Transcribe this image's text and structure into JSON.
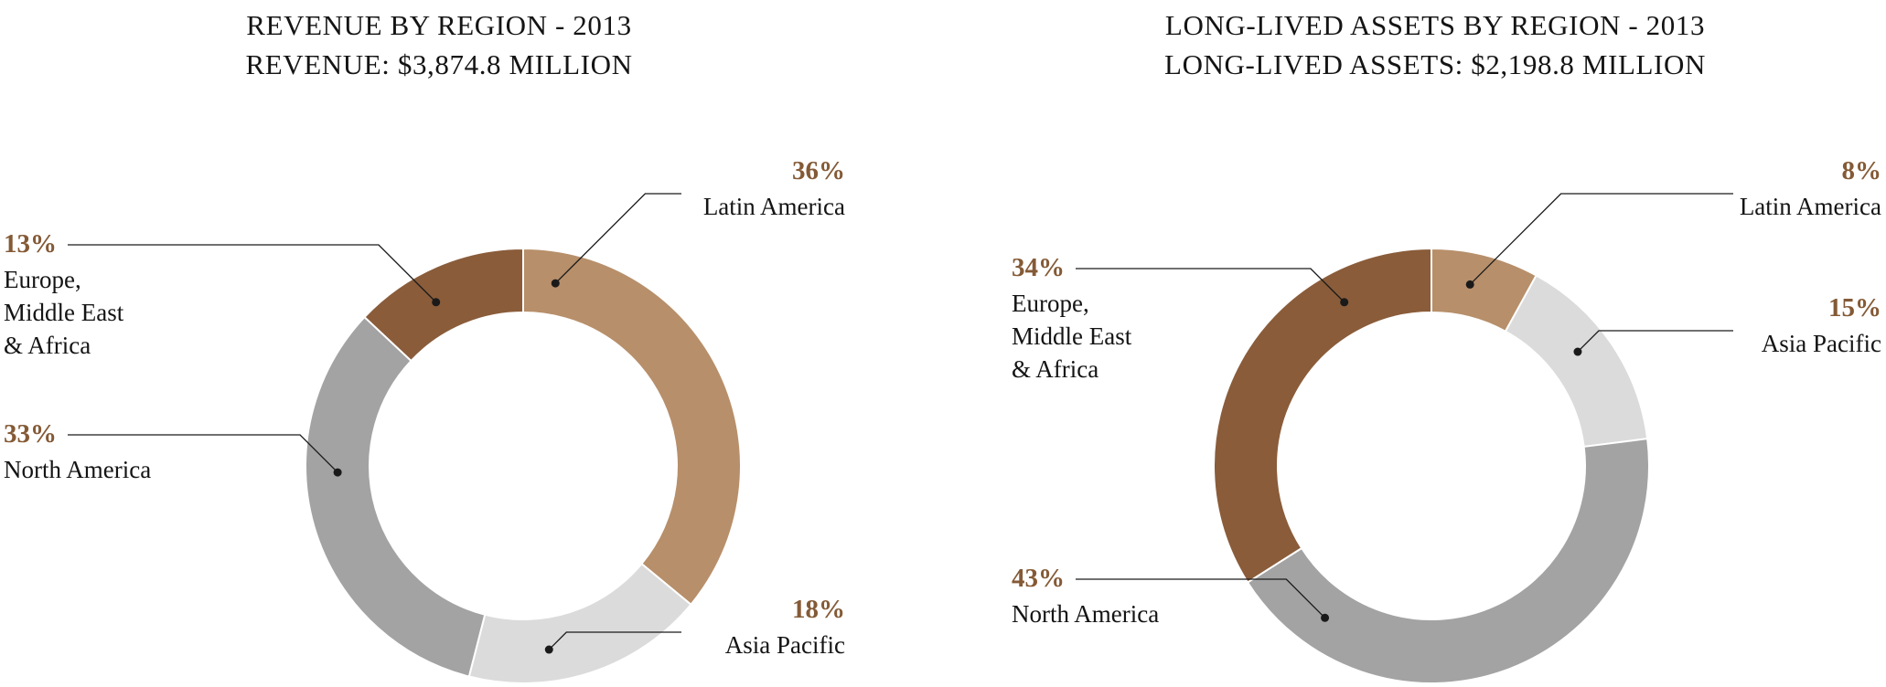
{
  "style": {
    "background": "#ffffff",
    "text_color": "#141414",
    "pct_label_color": "#845a36",
    "leader_color": "#1a1a1a",
    "slice_gap_color": "#ffffff"
  },
  "chart_data": [
    {
      "type": "pie",
      "subtype": "donut",
      "title_line1": "REVENUE BY REGION - 2013",
      "title_line2": "REVENUE: $3,874.8 MILLION",
      "unit": "%",
      "direction": "clockwise",
      "start_angle_deg": 0,
      "legend_position": "outside-callouts",
      "grid": false,
      "slices": [
        {
          "label": "Latin America",
          "display_label": "Latin America",
          "pct_label": "36%",
          "value": 36,
          "color": "#b78f6a"
        },
        {
          "label": "Asia Pacific",
          "display_label": "Asia Pacific",
          "pct_label": "18%",
          "value": 18,
          "color": "#dbdbdb"
        },
        {
          "label": "North America",
          "display_label": "North America",
          "pct_label": "33%",
          "value": 33,
          "color": "#a3a3a3"
        },
        {
          "label": "Europe, Middle East & Africa",
          "display_label": "Europe,\nMiddle East\n& Africa",
          "pct_label": "13%",
          "value": 13,
          "color": "#8a5c3a"
        }
      ]
    },
    {
      "type": "pie",
      "subtype": "donut",
      "title_line1": "LONG-LIVED ASSETS BY REGION - 2013",
      "title_line2": "LONG-LIVED ASSETS: $2,198.8 MILLION",
      "unit": "%",
      "direction": "clockwise",
      "start_angle_deg": 0,
      "legend_position": "outside-callouts",
      "grid": false,
      "slices": [
        {
          "label": "Latin America",
          "display_label": "Latin America",
          "pct_label": "8%",
          "value": 8,
          "color": "#b78f6a"
        },
        {
          "label": "Asia Pacific",
          "display_label": "Asia Pacific",
          "pct_label": "15%",
          "value": 15,
          "color": "#dbdbdb"
        },
        {
          "label": "North America",
          "display_label": "North America",
          "pct_label": "43%",
          "value": 43,
          "color": "#a3a3a3"
        },
        {
          "label": "Europe, Middle East & Africa",
          "display_label": "Europe,\nMiddle East\n& Africa",
          "pct_label": "34%",
          "value": 34,
          "color": "#8a5c3a"
        }
      ]
    }
  ]
}
